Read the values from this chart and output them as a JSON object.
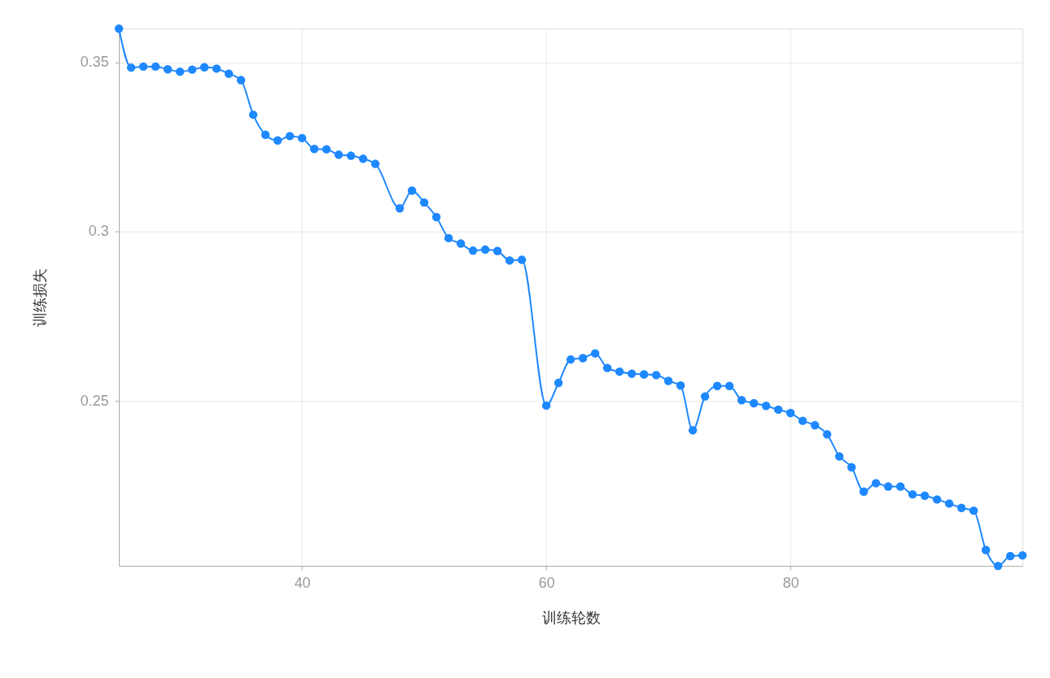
{
  "chart_data": {
    "type": "line",
    "xlabel": "训练轮数",
    "ylabel": "训练损失",
    "x": [
      25,
      26,
      27,
      28,
      29,
      30,
      31,
      32,
      33,
      34,
      35,
      36,
      37,
      38,
      39,
      40,
      41,
      42,
      43,
      44,
      45,
      46,
      48,
      49,
      50,
      51,
      52,
      53,
      54,
      55,
      56,
      57,
      58,
      60,
      61,
      62,
      63,
      64,
      65,
      66,
      67,
      68,
      69,
      70,
      71,
      72,
      73,
      74,
      75,
      76,
      77,
      78,
      79,
      80,
      81,
      82,
      83,
      84,
      85,
      86,
      87,
      88,
      89,
      90,
      91,
      92,
      93,
      94,
      95,
      96,
      97,
      98,
      99
    ],
    "series": [
      {
        "color": "#1e88ff",
        "values": [
          0.3599,
          0.3484,
          0.3487,
          0.3487,
          0.3479,
          0.3472,
          0.3478,
          0.3485,
          0.3481,
          0.3466,
          0.3447,
          0.3345,
          0.3286,
          0.3269,
          0.3282,
          0.3276,
          0.3244,
          0.3243,
          0.3227,
          0.3224,
          0.3215,
          0.32,
          0.3069,
          0.3121,
          0.3086,
          0.3043,
          0.2981,
          0.2965,
          0.2944,
          0.2947,
          0.2943,
          0.2915,
          0.2917,
          0.2487,
          0.2554,
          0.2623,
          0.2627,
          0.2641,
          0.2598,
          0.2587,
          0.2581,
          0.2579,
          0.2577,
          0.256,
          0.2546,
          0.2414,
          0.2514,
          0.2545,
          0.2545,
          0.2503,
          0.2494,
          0.2486,
          0.2475,
          0.2465,
          0.2442,
          0.2429,
          0.2402,
          0.2337,
          0.2305,
          0.2233,
          0.2258,
          0.2248,
          0.2248,
          0.2225,
          0.2221,
          0.221,
          0.2198,
          0.2185,
          0.2177,
          0.2061,
          0.2014,
          0.2043,
          0.2045
        ]
      }
    ],
    "xlim": [
      25,
      99
    ],
    "xticks": [
      40,
      60,
      80
    ],
    "ylim": [
      0.2014,
      0.3599
    ],
    "yticks": [
      0.25,
      0.3,
      0.35
    ],
    "grid": true,
    "marker": "circle",
    "line_style": "solid"
  }
}
